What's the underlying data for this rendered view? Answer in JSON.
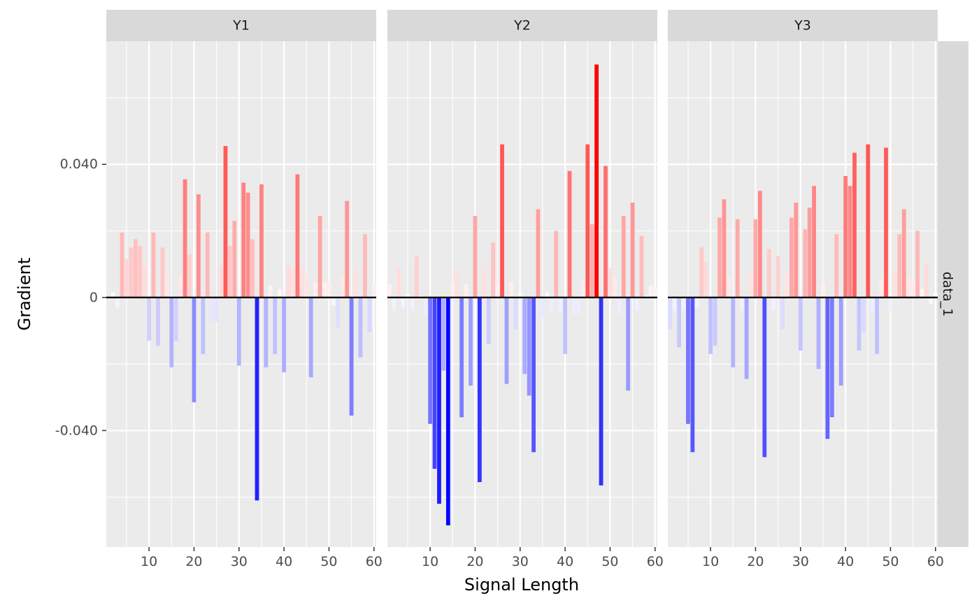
{
  "chart_data": {
    "type": "bar",
    "xlabel": "Signal Length",
    "ylabel": "Gradient",
    "row_strip": "data_1",
    "x_ticks": [
      10,
      20,
      30,
      40,
      50,
      60
    ],
    "y_ticks": [
      -0.04,
      0,
      0.04
    ],
    "y_tick_labels": [
      "-0.040",
      "0",
      "0.040"
    ],
    "xlim": [
      0.5,
      60.5
    ],
    "ylim": [
      -0.075,
      0.077
    ],
    "grid": true,
    "zero_line": true,
    "fill_scale": {
      "low": "#0000ff",
      "mid": "#ffffff",
      "high": "#ff0000",
      "limits": [
        -0.07,
        0.07
      ]
    },
    "panels": [
      {
        "name": "Y1",
        "x": [
          2,
          3,
          4,
          5,
          6,
          7,
          8,
          9,
          10,
          11,
          12,
          13,
          14,
          15,
          16,
          17,
          18,
          19,
          20,
          21,
          22,
          23,
          24,
          25,
          26,
          27,
          28,
          29,
          30,
          31,
          32,
          33,
          34,
          35,
          36,
          37,
          38,
          39,
          40,
          41,
          42,
          43,
          44,
          45,
          46,
          47,
          48,
          49,
          50,
          51,
          52,
          53,
          54,
          55,
          56,
          57,
          58,
          59,
          60
        ],
        "values": [
          0.0015,
          -0.003,
          0.0195,
          0.0115,
          0.015,
          0.0175,
          0.0155,
          0.0095,
          -0.013,
          0.0195,
          -0.0145,
          0.015,
          0.007,
          -0.021,
          -0.013,
          0.0065,
          0.0355,
          0.013,
          -0.0315,
          0.031,
          -0.017,
          0.0195,
          -0.007,
          -0.0075,
          0.0095,
          0.0455,
          0.0155,
          0.023,
          -0.0205,
          0.0345,
          0.0315,
          0.0175,
          -0.061,
          0.034,
          -0.021,
          0.0035,
          -0.017,
          0.0025,
          -0.0225,
          0.0095,
          0.0085,
          0.037,
          0.0085,
          0.007,
          -0.024,
          0.0045,
          0.0245,
          0.0045,
          0.0045,
          -0.0025,
          -0.009,
          0.0065,
          0.029,
          -0.0355,
          0.0085,
          -0.018,
          0.019,
          -0.0105,
          0.0045
        ]
      },
      {
        "name": "Y2",
        "x": [
          1,
          2,
          3,
          4,
          5,
          6,
          7,
          8,
          9,
          10,
          11,
          12,
          13,
          14,
          15,
          16,
          17,
          18,
          19,
          20,
          21,
          22,
          23,
          24,
          25,
          26,
          27,
          28,
          29,
          30,
          31,
          32,
          33,
          34,
          35,
          36,
          37,
          38,
          39,
          40,
          41,
          42,
          43,
          44,
          45,
          46,
          47,
          48,
          49,
          50,
          51,
          52,
          53,
          54,
          55,
          56,
          57,
          58,
          59,
          60
        ],
        "values": [
          0.004,
          -0.004,
          0.009,
          -0.003,
          0.001,
          -0.004,
          0.0125,
          0.0005,
          -0.005,
          -0.038,
          -0.0515,
          -0.062,
          -0.022,
          -0.0685,
          0.004,
          0.0085,
          -0.036,
          0.004,
          -0.0265,
          0.0245,
          -0.0555,
          0.0085,
          -0.014,
          0.0165,
          0.0045,
          0.046,
          -0.026,
          0.0045,
          -0.0095,
          0.0015,
          -0.023,
          -0.0295,
          -0.0465,
          0.0265,
          -0.006,
          0.0015,
          -0.005,
          0.02,
          -0.0045,
          -0.017,
          0.038,
          -0.005,
          -0.005,
          0.005,
          0.046,
          0.022,
          0.07,
          -0.0565,
          0.0395,
          0.009,
          0.006,
          -0.005,
          0.0245,
          -0.028,
          0.0285,
          -0.004,
          0.0185,
          0.0005,
          0.0035,
          0.003
        ]
      },
      {
        "name": "Y3",
        "x": [
          1,
          2,
          3,
          4,
          5,
          6,
          7,
          8,
          9,
          10,
          11,
          12,
          13,
          14,
          15,
          16,
          17,
          18,
          19,
          20,
          21,
          22,
          23,
          24,
          25,
          26,
          27,
          28,
          29,
          30,
          31,
          32,
          33,
          34,
          35,
          36,
          37,
          38,
          39,
          40,
          41,
          42,
          43,
          44,
          45,
          46,
          47,
          48,
          49,
          50,
          51,
          52,
          53,
          54,
          55,
          56,
          57,
          58,
          59,
          60
        ],
        "values": [
          -0.0095,
          -0.004,
          -0.015,
          -0.004,
          -0.038,
          -0.0465,
          -0.003,
          0.015,
          0.0105,
          -0.017,
          -0.0145,
          0.024,
          0.0295,
          0.006,
          -0.021,
          0.0235,
          -0.004,
          -0.0245,
          0.0075,
          0.0235,
          0.032,
          -0.048,
          0.0145,
          -0.004,
          0.0125,
          -0.0095,
          0.0075,
          0.024,
          0.0285,
          -0.016,
          0.0205,
          0.027,
          0.0335,
          -0.0215,
          0.0045,
          -0.0425,
          -0.036,
          0.019,
          -0.0265,
          0.0365,
          0.0335,
          0.0435,
          -0.016,
          -0.0105,
          0.046,
          -0.005,
          -0.017,
          0.0055,
          0.045,
          -0.004,
          0.0085,
          0.019,
          0.0265,
          0.006,
          0.0055,
          0.02,
          0.0025,
          0.01,
          -0.002,
          0.0015
        ]
      }
    ]
  }
}
